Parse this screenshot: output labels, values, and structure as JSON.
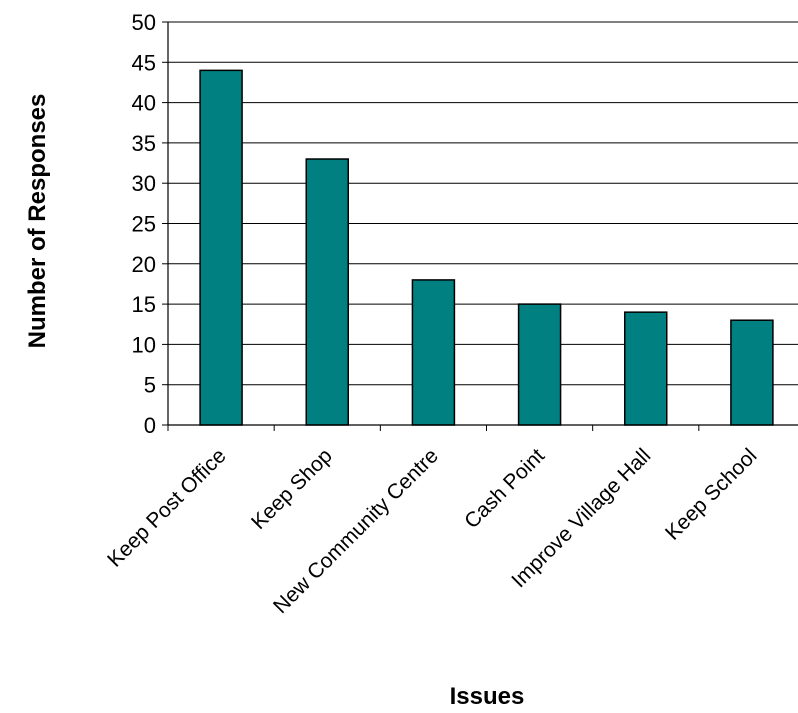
{
  "chart_data": {
    "type": "bar",
    "title": "",
    "xlabel": "Issues",
    "ylabel": "Number of Responses",
    "categories": [
      "Keep Post Office",
      "Keep Shop",
      "New Community Centre",
      "Cash Point",
      "Improve Village Hall",
      "Keep School"
    ],
    "values": [
      44,
      33,
      18,
      15,
      14,
      13
    ],
    "ylim": [
      0,
      50
    ],
    "yticks": [
      "0",
      "5",
      "10",
      "15",
      "20",
      "25",
      "30",
      "35",
      "40",
      "45",
      "50"
    ],
    "grid": true,
    "legend": "none",
    "colors": {
      "bar": "#008080",
      "bar_outline": "#000000",
      "grid": "#000000",
      "background": "#ffffff"
    }
  }
}
